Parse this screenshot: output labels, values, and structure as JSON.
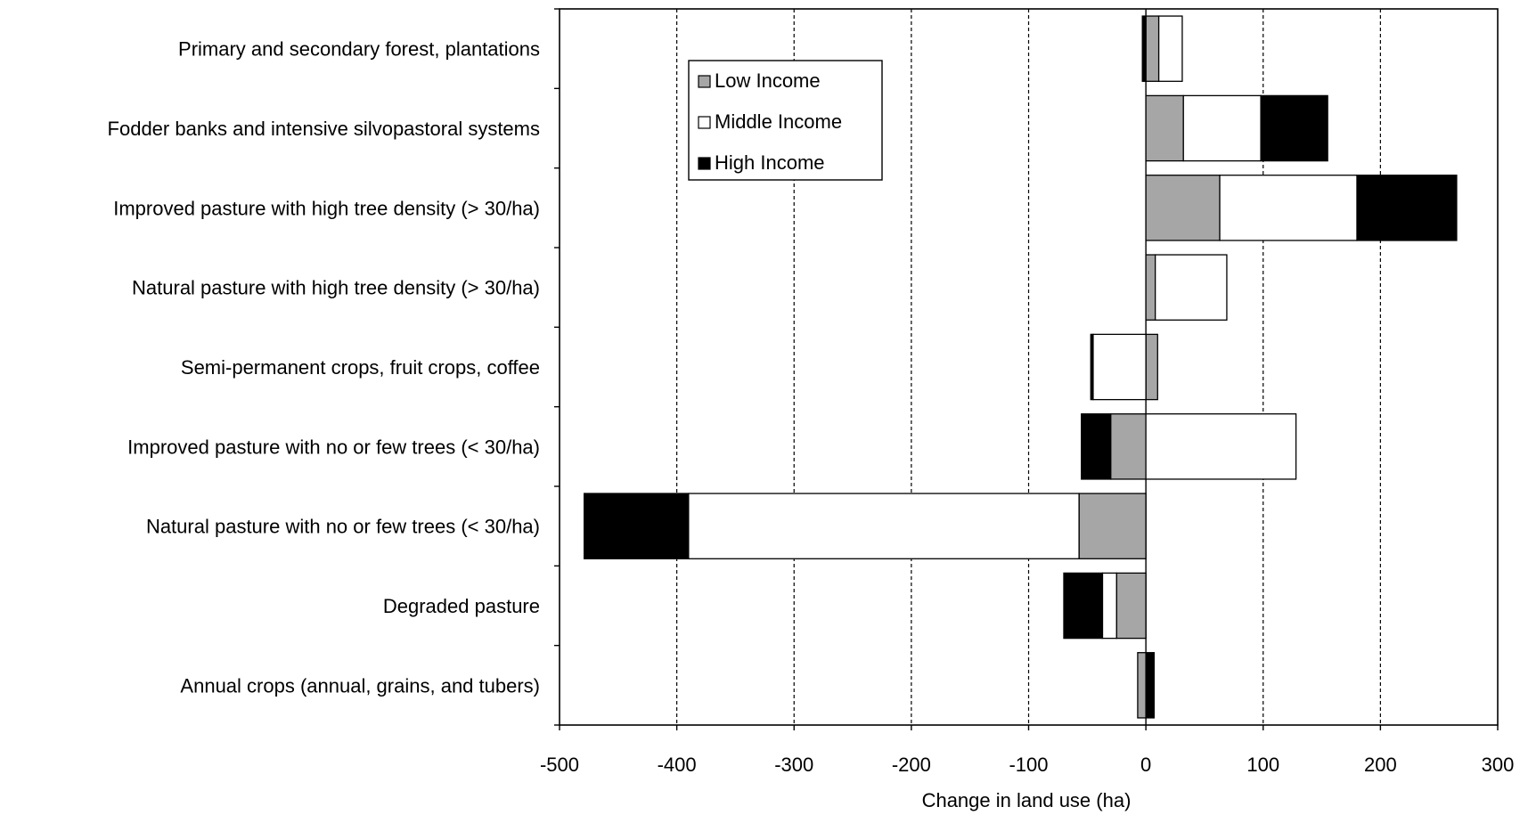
{
  "chart_data": {
    "type": "bar",
    "orientation": "horizontal",
    "stacked": true,
    "title": "",
    "xlabel": "Change in land use (ha)",
    "ylabel": "",
    "xlim": [
      -500,
      300
    ],
    "xticks": [
      -500,
      -400,
      -300,
      -200,
      -100,
      0,
      100,
      200,
      300
    ],
    "xtick_labels": [
      "-500",
      "-400",
      "-300",
      "-200",
      "-100",
      "0",
      "100",
      "200",
      "300"
    ],
    "grid": "vertical dashed",
    "legend_position": "top-left",
    "categories": [
      "Primary and secondary forest, plantations",
      "Fodder banks and intensive silvopastoral systems",
      "Improved pasture with high tree density (> 30/ha)",
      "Natural pasture with high tree density (> 30/ha)",
      "Semi-permanent crops, fruit crops, coffee",
      "Improved pasture with no or few trees (< 30/ha)",
      "Natural pasture with no or few trees (< 30/ha)",
      "Degraded pasture",
      "Annual crops (annual, grains, and tubers)"
    ],
    "series": [
      {
        "name": "Low Income",
        "color": "#a6a6a6",
        "values": [
          11,
          32,
          63,
          8,
          10,
          -30,
          -57,
          -25,
          -7
        ]
      },
      {
        "name": "Middle Income",
        "color": "#ffffff",
        "values": [
          20,
          66,
          117,
          61,
          -45,
          128,
          -333,
          -12,
          0
        ]
      },
      {
        "name": "High Income",
        "color": "#000000",
        "values": [
          -3,
          57,
          85,
          0,
          -2,
          -25,
          -89,
          -33,
          7
        ]
      }
    ]
  }
}
